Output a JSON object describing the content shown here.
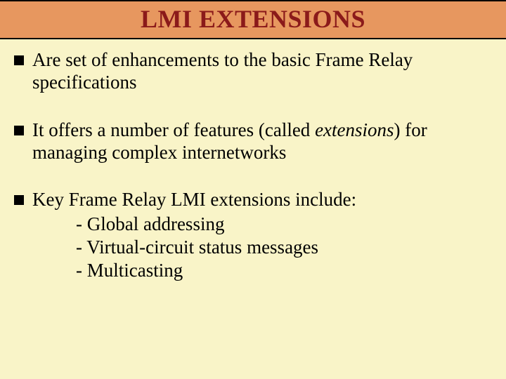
{
  "colors": {
    "slide_background": "#f9f4c8",
    "title_background": "#e7975f",
    "title_text": "#8b1a1a",
    "body_text": "#000000",
    "rule": "#000000"
  },
  "typography": {
    "title_fontsize": 36,
    "title_weight": "bold",
    "body_fontsize": 27,
    "font_family": "Times New Roman"
  },
  "title": "LMI EXTENSIONS",
  "bullets": [
    {
      "text_pre": "Are set of enhancements to the basic Frame Relay specifications",
      "italic": "",
      "text_post": ""
    },
    {
      "text_pre": "It offers a number of features (called ",
      "italic": "extensions",
      "text_post": ") for managing complex internetworks"
    },
    {
      "text_pre": "Key Frame Relay LMI extensions include:",
      "italic": "",
      "text_post": "",
      "sub": [
        "- Global addressing",
        "- Virtual-circuit status messages",
        "- Multicasting"
      ]
    }
  ]
}
